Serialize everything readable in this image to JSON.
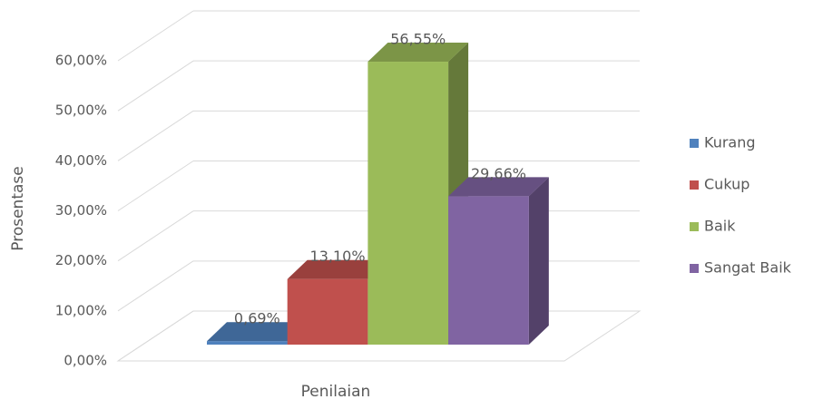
{
  "chart_data": {
    "type": "bar3d",
    "categories": [
      "Penilaian"
    ],
    "x_label": "Penilaian",
    "y_label": "Prosentase",
    "series": [
      {
        "name": "Kurang",
        "color": "#4f81bd",
        "values": [
          0.69
        ],
        "value_labels": [
          "0,69%"
        ]
      },
      {
        "name": "Cukup",
        "color": "#c0504d",
        "values": [
          13.1
        ],
        "value_labels": [
          "13,10%"
        ]
      },
      {
        "name": "Baik",
        "color": "#9bbb59",
        "values": [
          56.55
        ],
        "value_labels": [
          "56,55%"
        ]
      },
      {
        "name": "Sangat Baik",
        "color": "#8064a2",
        "values": [
          29.66
        ],
        "value_labels": [
          "29,66%"
        ]
      }
    ],
    "ylim": [
      0,
      60
    ],
    "yticks": [
      {
        "value": 0,
        "label": "0,00%"
      },
      {
        "value": 10,
        "label": "10,00%"
      },
      {
        "value": 20,
        "label": "20,00%"
      },
      {
        "value": 30,
        "label": "30,00%"
      },
      {
        "value": 40,
        "label": "40,00%"
      },
      {
        "value": 50,
        "label": "50,00%"
      },
      {
        "value": 60,
        "label": "60,00%"
      }
    ],
    "grid": true,
    "legend": "right"
  }
}
